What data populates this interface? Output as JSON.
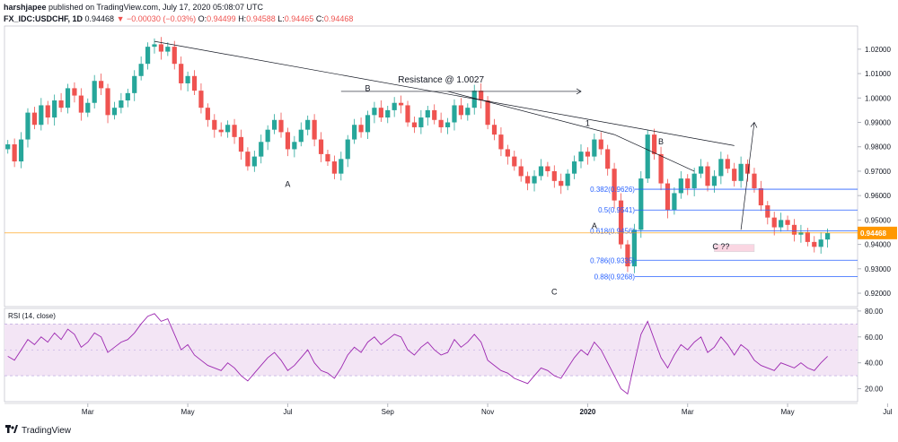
{
  "header": {
    "publisher": "harshjapee",
    "published_text": " published on TradingView.com, July 17, 2020 05:08:07 UTC",
    "symbol": "FX_IDC:USDCHF, 1D",
    "last": "0.94468",
    "change_arrow": "▼",
    "change": "−0.00030 (−0.03%)",
    "o_label": "O:",
    "o": "0.94499",
    "h_label": "H:",
    "h": "0.94588",
    "l_label": "L:",
    "l": "0.94465",
    "c_label": "C:",
    "c": "0.94468"
  },
  "footer": {
    "brand": "TradingView"
  },
  "chart_data": {
    "type": "candlestick",
    "price_axis": {
      "ticks": [
        "1.02000",
        "1.01000",
        "1.00000",
        "0.99000",
        "0.98000",
        "0.97000",
        "0.96000",
        "0.95000",
        "0.94000",
        "0.93000",
        "0.92000"
      ],
      "tick_values": [
        1.02,
        1.01,
        1.0,
        0.99,
        0.98,
        0.97,
        0.96,
        0.95,
        0.94,
        0.93,
        0.92
      ],
      "ylim": [
        0.9145,
        1.0295
      ],
      "last_price_label": "0.94468",
      "last_price": 0.94468
    },
    "rsi_axis": {
      "title": "RSI (14, close)",
      "ticks": [
        "80.00",
        "60.00",
        "40.00",
        "20.00"
      ],
      "tick_values": [
        80,
        60,
        40,
        20
      ],
      "ylim": [
        10,
        82
      ],
      "band": [
        30,
        70
      ]
    },
    "time_axis": {
      "labels": [
        "Mar",
        "May",
        "Jul",
        "Sep",
        "Nov",
        "2020",
        "Mar",
        "May",
        "Jul"
      ],
      "label_bars": [
        12,
        27,
        42,
        57,
        72,
        87,
        102,
        117,
        132
      ],
      "bold_label": "2020"
    },
    "closes": [
      0.981,
      0.974,
      0.983,
      0.994,
      0.989,
      0.997,
      0.992,
      0.999,
      0.996,
      1.004,
      1.001,
      0.994,
      0.998,
      1.007,
      1.004,
      0.993,
      0.996,
      0.999,
      1.002,
      1.009,
      1.014,
      1.021,
      1.022,
      1.019,
      1.021,
      1.014,
      1.006,
      1.009,
      1.003,
      0.996,
      0.991,
      0.987,
      0.986,
      0.989,
      0.984,
      0.978,
      0.972,
      0.976,
      0.982,
      0.987,
      0.991,
      0.986,
      0.979,
      0.982,
      0.987,
      0.991,
      0.983,
      0.977,
      0.974,
      0.969,
      0.975,
      0.983,
      0.989,
      0.986,
      0.993,
      0.996,
      0.992,
      0.995,
      0.998,
      0.997,
      0.99,
      0.988,
      0.992,
      0.995,
      0.991,
      0.988,
      0.99,
      0.997,
      0.993,
      0.996,
      1.003,
      0.999,
      0.989,
      0.985,
      0.979,
      0.976,
      0.972,
      0.968,
      0.965,
      0.968,
      0.972,
      0.97,
      0.966,
      0.964,
      0.969,
      0.974,
      0.978,
      0.976,
      0.983,
      0.979,
      0.971,
      0.958,
      0.94,
      0.931,
      0.946,
      0.967,
      0.985,
      0.977,
      0.965,
      0.954,
      0.961,
      0.967,
      0.963,
      0.969,
      0.972,
      0.964,
      0.968,
      0.975,
      0.971,
      0.966,
      0.973,
      0.969,
      0.963,
      0.956,
      0.951,
      0.947,
      0.95,
      0.948,
      0.944,
      0.945,
      0.941,
      0.939,
      0.942,
      0.9447
    ],
    "rsi": [
      45,
      42,
      50,
      58,
      54,
      60,
      56,
      63,
      58,
      66,
      62,
      52,
      56,
      63,
      60,
      48,
      52,
      56,
      58,
      63,
      70,
      76,
      78,
      72,
      74,
      62,
      50,
      54,
      46,
      42,
      38,
      36,
      34,
      40,
      36,
      30,
      26,
      32,
      38,
      44,
      48,
      42,
      34,
      38,
      44,
      50,
      40,
      34,
      32,
      28,
      36,
      46,
      52,
      48,
      56,
      60,
      54,
      58,
      62,
      60,
      50,
      46,
      52,
      56,
      50,
      46,
      48,
      58,
      52,
      56,
      62,
      56,
      42,
      38,
      34,
      32,
      28,
      26,
      24,
      30,
      36,
      34,
      30,
      28,
      36,
      44,
      50,
      46,
      56,
      50,
      40,
      30,
      20,
      16,
      40,
      62,
      72,
      58,
      44,
      36,
      46,
      54,
      50,
      56,
      60,
      48,
      52,
      60,
      54,
      46,
      54,
      50,
      42,
      38,
      36,
      34,
      40,
      38,
      36,
      40,
      36,
      34,
      40,
      45
    ],
    "annotations": [
      {
        "text": "Resistance @ 1.0027"
      },
      {
        "text": "B"
      },
      {
        "text": "A"
      },
      {
        "text": "1"
      },
      {
        "text": "A"
      },
      {
        "text": "B"
      },
      {
        "text": "C"
      },
      {
        "text": "C ??"
      }
    ],
    "fib_levels": [
      {
        "label": "0.382(0.9626)",
        "value": 0.9626
      },
      {
        "label": "0.5(0.9541)",
        "value": 0.9541
      },
      {
        "label": "0.618(0.9456)",
        "value": 0.9456
      },
      {
        "label": "0.786(0.9335)",
        "value": 0.9335
      },
      {
        "label": "0.88(0.9268)",
        "value": 0.9268
      }
    ],
    "colors": {
      "up": "#26a69a",
      "down": "#ef5350",
      "rsi_line": "#9c27b0",
      "rsi_band": "#f3e5f5",
      "fib": "#2962ff",
      "last_price_bg": "#ff9800",
      "trendline": "#131722"
    }
  }
}
